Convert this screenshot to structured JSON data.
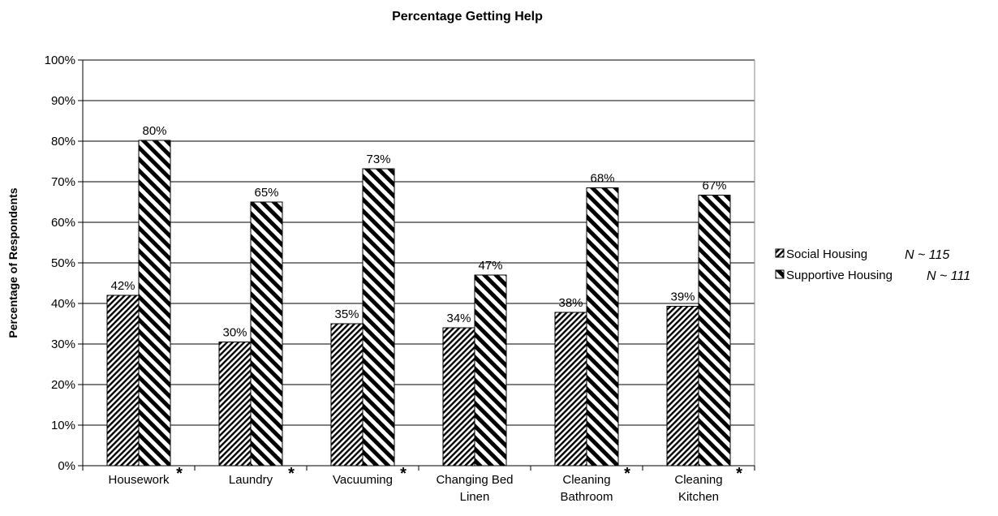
{
  "chart_data": {
    "type": "bar",
    "title": "Percentage Getting Help",
    "ylabel": "Percentage of Respondents",
    "xlabel": "",
    "ylim": [
      0,
      100
    ],
    "yticks": [
      "0%",
      "10%",
      "20%",
      "30%",
      "40%",
      "50%",
      "60%",
      "70%",
      "80%",
      "90%",
      "100%"
    ],
    "grid": true,
    "legend_position": "right",
    "categories": [
      [
        "Housework"
      ],
      [
        "Laundry"
      ],
      [
        "Vacuuming"
      ],
      [
        "Changing Bed",
        "Linen"
      ],
      [
        "Cleaning",
        "Bathroom"
      ],
      [
        "Cleaning",
        "Kitchen"
      ]
    ],
    "significance_marker": "*",
    "significant": [
      true,
      true,
      true,
      false,
      true,
      true
    ],
    "series": [
      {
        "name": "Social Housing",
        "n_label": "N ~ 115",
        "pattern": "fine-diagonal",
        "values": [
          42,
          30.5,
          35,
          34,
          37.8,
          39.3
        ],
        "labels": [
          "42%",
          "30%",
          "35%",
          "34%",
          "38%",
          "39%"
        ]
      },
      {
        "name": "Supportive Housing",
        "n_label": "N ~ 111",
        "pattern": "wide-diagonal",
        "values": [
          80.2,
          65,
          73.2,
          47,
          68.5,
          66.7
        ],
        "labels": [
          "80%",
          "65%",
          "73%",
          "47%",
          "68%",
          "67%"
        ]
      }
    ],
    "colors": {
      "ink": "#000000",
      "grid": "#000000",
      "background": "#ffffff"
    }
  }
}
